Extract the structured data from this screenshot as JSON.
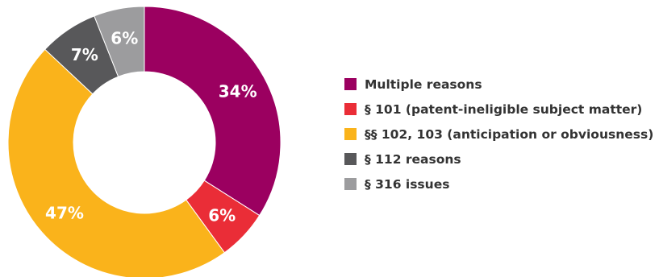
{
  "chart_data": {
    "type": "pie",
    "donut": true,
    "slices": [
      {
        "label": "Multiple reasons",
        "value": 34,
        "display": "34%",
        "color": "#9b0060"
      },
      {
        "label": "§ 101 (patent-ineligible subject matter)",
        "value": 6,
        "display": "6%",
        "color": "#ea2d37"
      },
      {
        "label": "§§ 102, 103 (anticipation or obviousness)",
        "value": 47,
        "display": "47%",
        "color": "#fab31b"
      },
      {
        "label": "§ 112 reasons",
        "value": 7,
        "display": "7%",
        "color": "#58585a"
      },
      {
        "label": "§ 316 issues",
        "value": 6,
        "display": "6%",
        "color": "#9c9c9e"
      }
    ],
    "legend_position": "right"
  }
}
